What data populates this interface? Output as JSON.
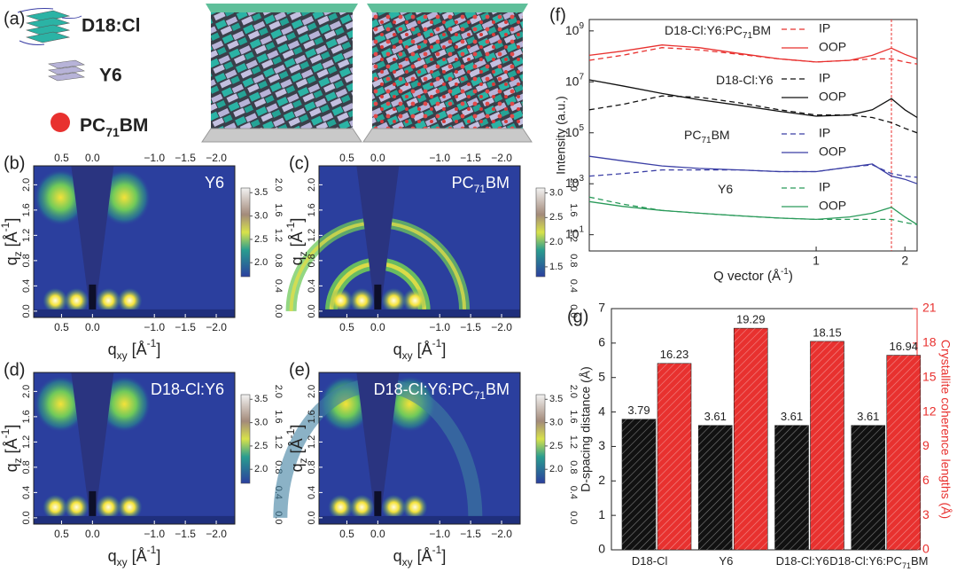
{
  "schematic": {
    "letter": "(a)",
    "items": [
      {
        "label": "D18:Cl"
      },
      {
        "label": "Y6"
      },
      {
        "label": [
          {
            "text": "PC"
          },
          {
            "text": "71",
            "shift": "sub"
          },
          {
            "text": "BM"
          }
        ]
      }
    ]
  },
  "giwaxs": {
    "xlim": [
      0.95,
      -2.3
    ],
    "xticks": [
      0.5,
      {
        "value": 0,
        "label": "0.0"
      },
      {
        "value": -1,
        "label": "−1.0"
      },
      {
        "value": -1.5,
        "label": "−1.5"
      },
      {
        "value": -2,
        "label": "−2.0"
      }
    ],
    "ylim": [
      -0.1,
      2.3
    ],
    "yticks": [
      {
        "value": 0,
        "label": "0.0"
      },
      0.4,
      0.8,
      1.2,
      1.6,
      {
        "value": 2,
        "label": "2.0"
      }
    ],
    "xlabel": [
      {
        "text": "q"
      },
      {
        "text": "xy",
        "shift": "sub"
      },
      {
        "text": " [Å"
      },
      {
        "text": "-1",
        "shift": "super"
      },
      {
        "text": "]"
      }
    ],
    "ylabel": [
      {
        "text": "q"
      },
      {
        "text": "z",
        "shift": "sub"
      },
      {
        "text": " [Å"
      },
      {
        "text": "-1",
        "shift": "super"
      },
      {
        "text": "]"
      }
    ],
    "panels": [
      {
        "letter": "(b)",
        "label": "Y6",
        "pattern": "lobes",
        "top_axis": true,
        "clim": [
          1.7,
          3.6
        ],
        "cticks": [
          {
            "value": 2,
            "label": "2.0"
          },
          2.5,
          {
            "value": 3,
            "label": "3.0"
          },
          3.5
        ]
      },
      {
        "letter": "(c)",
        "label": [
          {
            "text": "PC"
          },
          {
            "text": "71",
            "shift": "sub"
          },
          {
            "text": "BM"
          }
        ],
        "pattern": "rings",
        "top_axis": true,
        "clim": [
          1.3,
          3.1
        ],
        "cticks": [
          1.5,
          {
            "value": 2,
            "label": "2.0"
          },
          2.5,
          {
            "value": 3,
            "label": "3.0"
          }
        ]
      },
      {
        "letter": "(d)",
        "label": "D18-Cl:Y6",
        "pattern": "lobes",
        "top_axis": false,
        "clim": [
          1.7,
          3.6
        ],
        "cticks": [
          {
            "value": 2,
            "label": "2.0"
          },
          2.5,
          {
            "value": 3,
            "label": "3.0"
          },
          3.5
        ]
      },
      {
        "letter": "(e)",
        "label": [
          {
            "text": "D18-Cl:Y6:PC"
          },
          {
            "text": "71",
            "shift": "sub"
          },
          {
            "text": "BM"
          }
        ],
        "pattern": "lobes",
        "top_axis": false,
        "clim": [
          1.7,
          3.6
        ],
        "cticks": [
          {
            "value": 2,
            "label": "2.0"
          },
          2.5,
          {
            "value": 3,
            "label": "3.0"
          },
          3.5
        ]
      }
    ]
  },
  "chart_data": [
    {
      "type": "line",
      "letter": "(f)",
      "xscale": "log",
      "yscale": "log",
      "ylabel": "Intensity (a.u.)",
      "xlabel": [
        {
          "text": "Q vector (Å"
        },
        {
          "text": "-1",
          "shift": "super"
        },
        {
          "text": ")"
        }
      ],
      "xlim": [
        0.17,
        2.2
      ],
      "xticks": [
        1,
        2
      ],
      "ylim": [
        2.3,
        2800000000
      ],
      "yticks": [
        {
          "value": 10,
          "label": "10",
          "exponent": "1"
        },
        {
          "value": 1000,
          "label": "10",
          "exponent": "3"
        },
        {
          "value": 100000,
          "label": "10",
          "exponent": "5"
        },
        {
          "value": 10000000,
          "label": "10",
          "exponent": "7"
        },
        {
          "value": 1000000000,
          "label": "10",
          "exponent": "9"
        }
      ],
      "x": [
        0.17,
        0.22,
        0.3,
        0.4,
        0.55,
        0.75,
        1.0,
        1.3,
        1.55,
        1.8,
        2.0,
        2.2
      ],
      "groups": [
        {
          "label": [
            {
              "text": "D18-Cl:Y6:PC"
            },
            {
              "text": "71",
              "shift": "sub"
            },
            {
              "text": "BM"
            }
          ]
        },
        {
          "label": [
            {
              "text": "D18-Cl:Y6"
            }
          ]
        },
        {
          "label": [
            {
              "text": "PC"
            },
            {
              "text": "71",
              "shift": "sub"
            },
            {
              "text": "BM"
            }
          ]
        },
        {
          "label": [
            {
              "text": "Y6"
            }
          ]
        }
      ],
      "series": [
        {
          "name": "IP",
          "group": 0,
          "dashed": true,
          "color": "#e8312f",
          "values": [
            70000000,
            110000000,
            220000000,
            180000000,
            120000000,
            80000000,
            60000000,
            70000000,
            80000000,
            80000000,
            60000000,
            50000000
          ]
        },
        {
          "name": "OOP",
          "group": 0,
          "dashed": false,
          "color": "#e8312f",
          "values": [
            110000000,
            160000000,
            280000000,
            220000000,
            130000000,
            80000000,
            60000000,
            70000000,
            110000000,
            210000000,
            120000000,
            80000000
          ]
        },
        {
          "name": "IP",
          "group": 1,
          "dashed": true,
          "color": "#111111",
          "values": [
            800000,
            1300000,
            2800000,
            2500000,
            1500000,
            800000,
            500000,
            500000,
            400000,
            250000,
            150000,
            100000
          ]
        },
        {
          "name": "OOP",
          "group": 1,
          "dashed": false,
          "color": "#111111",
          "values": [
            12000000,
            7000000,
            3500000,
            2000000,
            1200000,
            700000,
            450000,
            500000,
            800000,
            2200000,
            800000,
            400000
          ]
        },
        {
          "name": "IP",
          "group": 2,
          "dashed": true,
          "color": "#3b3fa5",
          "values": [
            2000,
            2500,
            3500,
            3500,
            3500,
            3000,
            3000,
            4500,
            5500,
            2500,
            2000,
            1800
          ]
        },
        {
          "name": "OOP",
          "group": 2,
          "dashed": false,
          "color": "#3b3fa5",
          "values": [
            12000,
            8000,
            5000,
            4000,
            3500,
            3000,
            3000,
            4500,
            6000,
            2000,
            1500,
            1000
          ]
        },
        {
          "name": "IP",
          "group": 3,
          "dashed": true,
          "color": "#2a9a5a",
          "values": [
            300,
            160,
            90,
            70,
            55,
            45,
            40,
            40,
            40,
            40,
            30,
            25
          ]
        },
        {
          "name": "OOP",
          "group": 3,
          "dashed": false,
          "color": "#2a9a5a",
          "values": [
            200,
            130,
            90,
            70,
            55,
            45,
            40,
            50,
            70,
            120,
            50,
            25
          ]
        }
      ],
      "vline": {
        "x": 1.8,
        "color": "#e8312f"
      }
    },
    {
      "type": "bar",
      "letter": "(g)",
      "categories": [
        [
          {
            "text": "D18-Cl"
          }
        ],
        [
          {
            "text": "Y6"
          }
        ],
        [
          {
            "text": "D18-Cl:Y6"
          }
        ],
        [
          {
            "text": "D18-Cl:Y6:PC"
          },
          {
            "text": "71",
            "shift": "sub"
          },
          {
            "text": "BM"
          }
        ]
      ],
      "ylabel": "D-spacing distance (Å)",
      "y2label": "Crystallite coherence lengths (Å)",
      "ylim": [
        0,
        7
      ],
      "yticks": [
        0,
        1,
        2,
        3,
        4,
        5,
        6,
        7
      ],
      "y2lim": [
        0,
        21
      ],
      "y2ticks": [
        0,
        3,
        6,
        9,
        12,
        15,
        18,
        21
      ],
      "series": [
        {
          "color": "#111111",
          "values": [
            3.79,
            3.61,
            3.61,
            3.61
          ]
        },
        {
          "color": "#e8312f",
          "axis": "y2",
          "values": [
            16.23,
            19.29,
            18.15,
            16.94
          ]
        }
      ]
    }
  ]
}
